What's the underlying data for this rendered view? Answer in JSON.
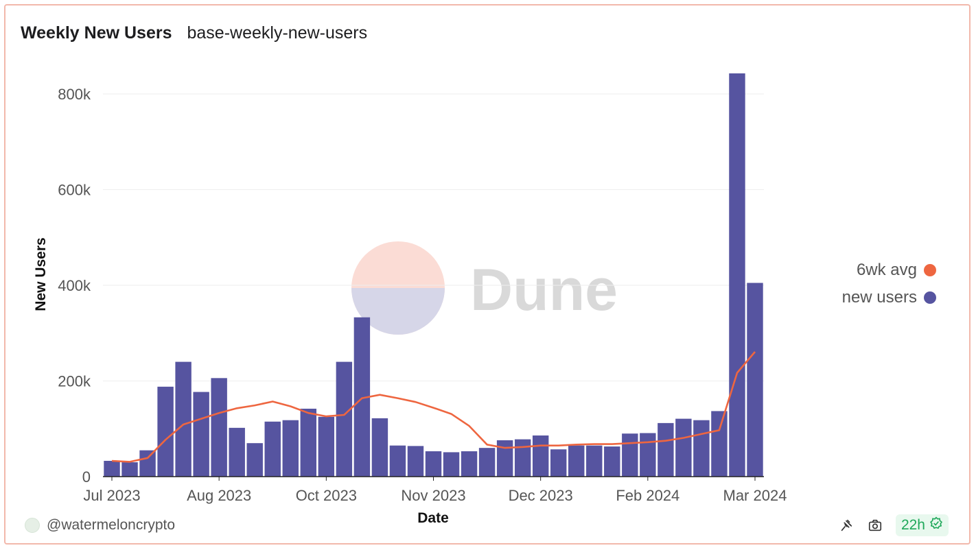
{
  "header": {
    "title": "Weekly New Users",
    "subtitle": "base-weekly-new-users"
  },
  "watermark": {
    "text": "Dune"
  },
  "footer": {
    "author": "@watermeloncrypto",
    "refresh": "22h"
  },
  "colors": {
    "bars": "#5654a0",
    "line": "#ee6640",
    "grid": "#eeeeee",
    "axis": "#222222"
  },
  "chart_data": {
    "type": "bar",
    "title": "Weekly New Users",
    "xlabel": "Date",
    "ylabel": "New Users",
    "ylim": [
      0,
      800000
    ],
    "yticks": [
      {
        "value": 0,
        "label": "0"
      },
      {
        "value": 200000,
        "label": "200k"
      },
      {
        "value": 400000,
        "label": "400k"
      },
      {
        "value": 600000,
        "label": "600k"
      },
      {
        "value": 800000,
        "label": "800k"
      }
    ],
    "xticks": [
      {
        "index": 0,
        "label": "Jul 2023"
      },
      {
        "index": 6,
        "label": "Aug 2023"
      },
      {
        "index": 12,
        "label": "Oct 2023"
      },
      {
        "index": 18,
        "label": "Nov 2023"
      },
      {
        "index": 24,
        "label": "Dec 2023"
      },
      {
        "index": 30,
        "label": "Feb 2024"
      },
      {
        "index": 36,
        "label": "Mar 2024"
      }
    ],
    "legend": [
      {
        "name": "6wk avg",
        "color": "#ee6640"
      },
      {
        "name": "new users",
        "color": "#5654a0"
      }
    ],
    "series": [
      {
        "name": "new users",
        "kind": "bar",
        "values": [
          33000,
          30000,
          55000,
          188000,
          240000,
          177000,
          206000,
          102000,
          70000,
          115000,
          118000,
          142000,
          125000,
          240000,
          333000,
          122000,
          65000,
          64000,
          53000,
          51000,
          53000,
          60000,
          76000,
          78000,
          86000,
          57000,
          65000,
          65000,
          63000,
          90000,
          91000,
          112000,
          121000,
          118000,
          137000,
          843000,
          405000
        ]
      },
      {
        "name": "6wk avg",
        "kind": "line",
        "values": [
          33000,
          31000,
          39000,
          77000,
          109000,
          121000,
          133000,
          143000,
          149000,
          157000,
          147000,
          133000,
          126000,
          129000,
          164000,
          171000,
          164000,
          156000,
          144000,
          131000,
          106000,
          67000,
          60000,
          62000,
          65000,
          65000,
          67000,
          68000,
          68000,
          70000,
          72000,
          75000,
          81000,
          89000,
          97000,
          217000,
          261000
        ]
      }
    ]
  }
}
